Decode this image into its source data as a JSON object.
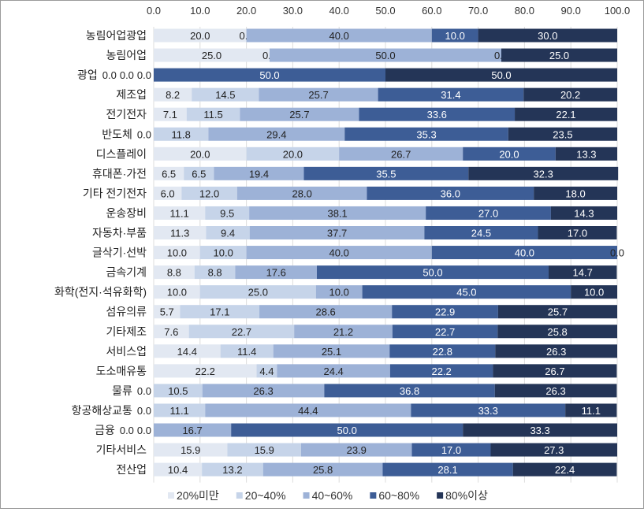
{
  "chart_data": {
    "type": "bar",
    "orientation": "horizontal",
    "stacked": true,
    "title": "",
    "xlabel": "",
    "ylabel": "",
    "xlim": [
      0,
      100
    ],
    "x_ticks": [
      "0.0",
      "10.0",
      "20.0",
      "30.0",
      "40.0",
      "50.0",
      "60.0",
      "70.0",
      "80.0",
      "90.0",
      "100.0"
    ],
    "x_axis_position": "top",
    "grid": true,
    "legend_position": "bottom",
    "categories": [
      "농림어업광업",
      "농림어업",
      "광업",
      "제조업",
      "전기전자",
      "반도체",
      "디스플레이",
      "휴대폰·가전",
      "기타 전기전자",
      "운송장비",
      "자동차·부품",
      "글삭기·선박",
      "금속기계",
      "화학(전지·석유화학)",
      "섬유의류",
      "기타제조",
      "서비스업",
      "도소매유통",
      "물류",
      "항공해상교통",
      "금융",
      "기타서비스",
      "전산업"
    ],
    "series": [
      {
        "name": "20%미만",
        "color": "#e2e8f2",
        "values": [
          20.0,
          25.0,
          0.0,
          8.2,
          7.1,
          0.0,
          20.0,
          6.5,
          6.0,
          11.1,
          11.3,
          10.0,
          8.8,
          10.0,
          5.7,
          7.6,
          14.4,
          22.2,
          0.0,
          0.0,
          0.0,
          15.9,
          10.4
        ]
      },
      {
        "name": "20~40%",
        "color": "#c6d4e9",
        "values": [
          0.0,
          0.0,
          0.0,
          14.5,
          11.5,
          11.8,
          20.0,
          6.5,
          12.0,
          9.5,
          9.4,
          10.0,
          8.8,
          25.0,
          17.1,
          22.7,
          11.4,
          4.4,
          10.5,
          11.1,
          0.0,
          15.9,
          13.2
        ]
      },
      {
        "name": "40~60%",
        "color": "#9db2d7",
        "values": [
          40.0,
          50.0,
          0.0,
          25.7,
          25.7,
          29.4,
          26.7,
          19.4,
          28.0,
          38.1,
          37.7,
          40.0,
          17.6,
          10.0,
          28.6,
          21.2,
          25.1,
          24.4,
          26.3,
          44.4,
          16.7,
          23.9,
          25.8
        ]
      },
      {
        "name": "60~80%",
        "color": "#3d5d96",
        "values": [
          10.0,
          0.0,
          50.0,
          31.4,
          33.6,
          35.3,
          20.0,
          35.5,
          36.0,
          27.0,
          24.5,
          40.0,
          50.0,
          45.0,
          22.9,
          22.7,
          22.8,
          22.2,
          36.8,
          33.3,
          50.0,
          17.0,
          28.1
        ]
      },
      {
        "name": "80%이상",
        "color": "#243557",
        "values": [
          30.0,
          25.0,
          50.0,
          20.2,
          22.1,
          23.5,
          13.3,
          32.3,
          18.0,
          14.3,
          17.0,
          0.0,
          14.7,
          10.0,
          25.7,
          25.8,
          26.3,
          26.7,
          26.3,
          11.1,
          33.3,
          27.3,
          22.4
        ]
      }
    ]
  }
}
